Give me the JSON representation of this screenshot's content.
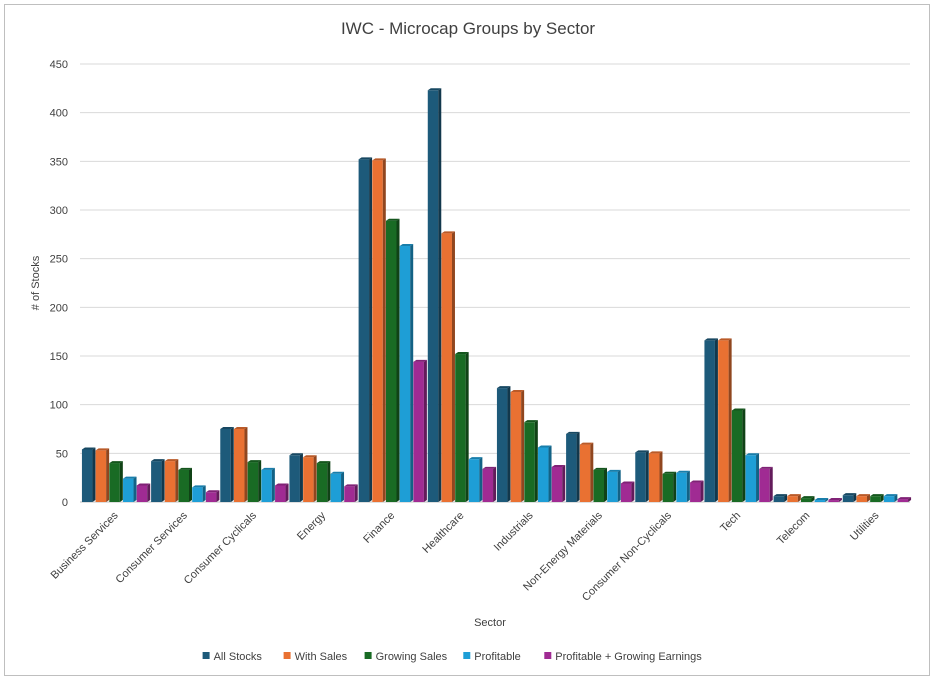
{
  "chart_data": {
    "type": "bar",
    "title": "IWC - Microcap Groups by Sector",
    "xlabel": "Sector",
    "ylabel": "# of Stocks",
    "ylim": [
      0,
      450
    ],
    "yticks": [
      0,
      50,
      100,
      150,
      200,
      250,
      300,
      350,
      400,
      450
    ],
    "grid": true,
    "legend_position": "bottom",
    "categories": [
      "Business Services",
      "Consumer Services",
      "Consumer Cyclicals",
      "Energy",
      "Finance",
      "Healthcare",
      "Industrials",
      "Non-Energy Materials",
      "Consumer Non-Cyclicals",
      "Tech",
      "Telecom",
      "Utilities"
    ],
    "series": [
      {
        "name": "All Stocks",
        "color": "#1d5a7a",
        "values": [
          54,
          42,
          75,
          48,
          352,
          423,
          117,
          70,
          51,
          166,
          6,
          7
        ]
      },
      {
        "name": "With Sales",
        "color": "#e97132",
        "values": [
          53,
          42,
          75,
          46,
          351,
          276,
          113,
          59,
          50,
          166,
          6,
          6
        ]
      },
      {
        "name": "Growing Sales",
        "color": "#196b24",
        "values": [
          40,
          33,
          41,
          40,
          289,
          152,
          82,
          33,
          29,
          94,
          4,
          6
        ]
      },
      {
        "name": "Profitable",
        "color": "#1e9ed6",
        "values": [
          24,
          15,
          33,
          29,
          263,
          44,
          56,
          31,
          30,
          48,
          2,
          6
        ]
      },
      {
        "name": "Profitable + Growing Earnings",
        "color": "#a02b93",
        "values": [
          17,
          10,
          17,
          16,
          144,
          34,
          36,
          19,
          20,
          34,
          2,
          3
        ]
      }
    ]
  }
}
